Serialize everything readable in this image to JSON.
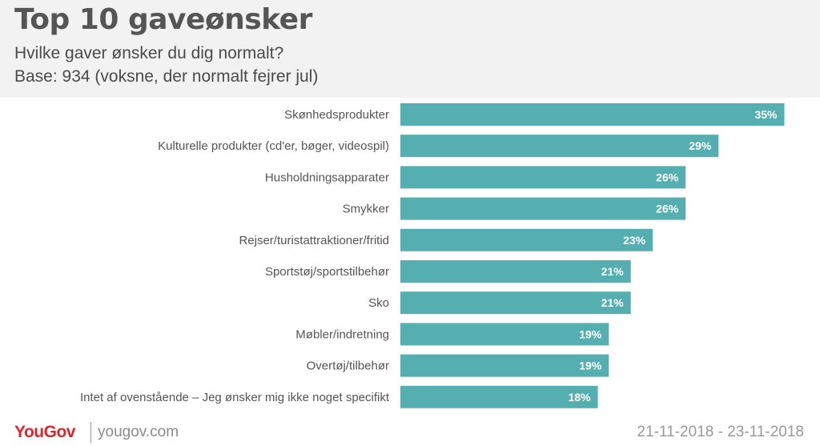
{
  "header": {
    "title": "Top 10 gaveønsker",
    "subtitle": "Hvilke gaver ønsker du dig normalt?",
    "base": "Base: 934 (voksne, der normalt fejrer jul)"
  },
  "chart_data": {
    "type": "bar",
    "orientation": "horizontal",
    "bar_color": "#55aeb0",
    "categories": [
      "Skønhedsprodukter",
      "Kulturelle produkter (cd'er, bøger, videospil)",
      "Husholdningsapparater",
      "Smykker",
      "Rejser/turistattraktioner/fritid",
      "Sportstøj/sportstilbehør",
      "Sko",
      "Møbler/indretning",
      "Overtøj/tilbehør",
      "Intet af ovenstående – Jeg ønsker mig ikke noget specifikt"
    ],
    "values": [
      35,
      29,
      26,
      26,
      23,
      21,
      21,
      19,
      19,
      18
    ],
    "value_labels": [
      "35%",
      "29%",
      "26%",
      "26%",
      "23%",
      "21%",
      "21%",
      "19%",
      "19%",
      "18%"
    ],
    "unit": "%",
    "grid": false
  },
  "footer": {
    "logo": "YouGov",
    "site": "yougov.com",
    "date_range": "21-11-2018 - 23-11-2018"
  }
}
